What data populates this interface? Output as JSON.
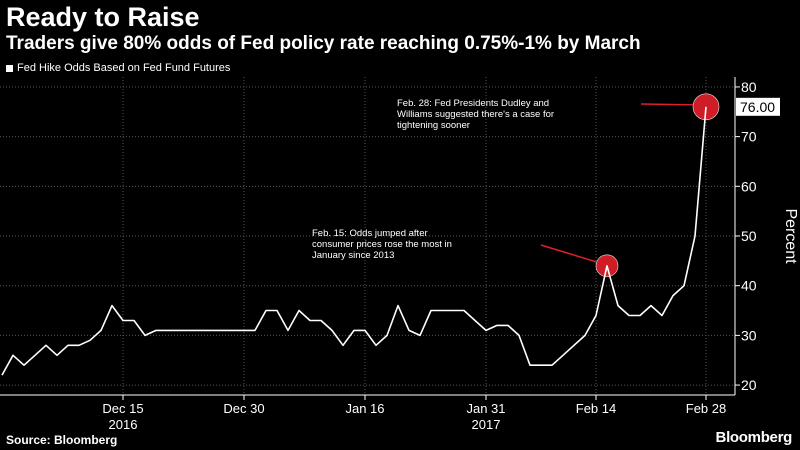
{
  "header": {
    "title": "Ready to Raise",
    "subtitle": "Traders give 80% odds of Fed policy rate reaching 0.75%-1% by March"
  },
  "footer": {
    "source": "Source: Bloomberg",
    "brand": "Bloomberg"
  },
  "colors": {
    "background": "#000000",
    "line": "#ffffff",
    "highlight": "#e0202a",
    "grid": "#555555"
  },
  "chart_data": {
    "type": "line",
    "legend_position": "top-left",
    "grid": true,
    "ylabel": "Percent",
    "y_axis_side": "right",
    "ylim": [
      18,
      82
    ],
    "yticks": [
      20,
      30,
      40,
      50,
      60,
      70,
      80
    ],
    "x_ticks": [
      {
        "index": 11,
        "label": "Dec 15",
        "sublabel": "2016"
      },
      {
        "index": 22,
        "label": "Dec 30",
        "sublabel": ""
      },
      {
        "index": 33,
        "label": "Jan 16",
        "sublabel": ""
      },
      {
        "index": 44,
        "label": "Jan 31",
        "sublabel": "2017"
      },
      {
        "index": 54,
        "label": "Feb 14",
        "sublabel": ""
      },
      {
        "index": 64,
        "label": "Feb 28",
        "sublabel": ""
      }
    ],
    "series": [
      {
        "name": "Fed Hike Odds Based on Fed Fund Futures",
        "values": [
          22,
          26,
          24,
          26,
          28,
          26,
          28,
          28,
          29,
          31,
          36,
          33,
          33,
          30,
          31,
          31,
          31,
          31,
          31,
          31,
          31,
          31,
          31,
          31,
          35,
          35,
          31,
          35,
          33,
          33,
          31,
          28,
          31,
          31,
          28,
          30,
          36,
          31,
          30,
          35,
          35,
          35,
          35,
          33,
          31,
          32,
          32,
          30,
          24,
          24,
          24,
          26,
          28,
          30,
          34,
          44,
          36,
          34,
          34,
          36,
          34,
          38,
          40,
          50,
          76
        ]
      }
    ],
    "last_value_label": "76.00",
    "annotations": [
      {
        "index": 55,
        "value": 44,
        "text": "Feb. 15: Odds jumped after consumer prices rose the most in January since 2013",
        "lines": [
          "Feb. 15: Odds jumped after",
          "consumer prices rose the most in",
          "January since 2013"
        ]
      },
      {
        "index": 64,
        "value": 76,
        "text": "Feb. 28: Fed Presidents Dudley and Williams suggested there's a case for tightening sooner",
        "lines": [
          "Feb. 28: Fed Presidents Dudley and",
          "Williams suggested there's a case for",
          "tightening sooner"
        ]
      }
    ]
  }
}
